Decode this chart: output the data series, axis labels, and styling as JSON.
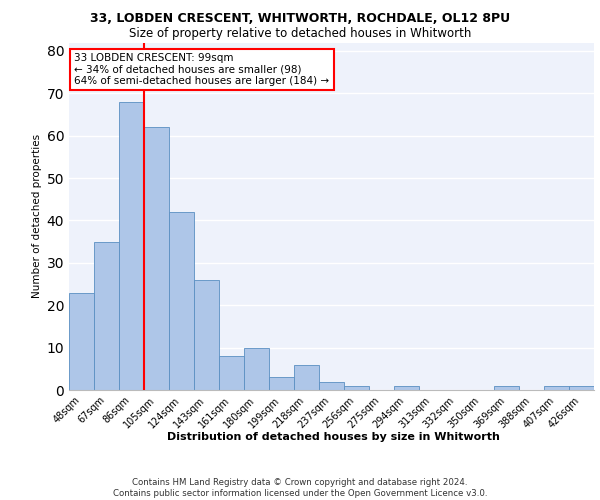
{
  "title1": "33, LOBDEN CRESCENT, WHITWORTH, ROCHDALE, OL12 8PU",
  "title2": "Size of property relative to detached houses in Whitworth",
  "xlabel": "Distribution of detached houses by size in Whitworth",
  "ylabel": "Number of detached properties",
  "footnote": "Contains HM Land Registry data © Crown copyright and database right 2024.\nContains public sector information licensed under the Open Government Licence v3.0.",
  "categories": [
    "48sqm",
    "67sqm",
    "86sqm",
    "105sqm",
    "124sqm",
    "143sqm",
    "161sqm",
    "180sqm",
    "199sqm",
    "218sqm",
    "237sqm",
    "256sqm",
    "275sqm",
    "294sqm",
    "313sqm",
    "332sqm",
    "350sqm",
    "369sqm",
    "388sqm",
    "407sqm",
    "426sqm"
  ],
  "values": [
    23,
    35,
    68,
    62,
    42,
    26,
    8,
    10,
    3,
    6,
    2,
    1,
    0,
    1,
    0,
    0,
    0,
    1,
    0,
    1,
    1
  ],
  "bar_color": "#aec6e8",
  "bar_edge_color": "#5a8fc2",
  "ylim": [
    0,
    82
  ],
  "yticks": [
    0,
    10,
    20,
    30,
    40,
    50,
    60,
    70,
    80
  ],
  "annotation_text": "33 LOBDEN CRESCENT: 99sqm\n← 34% of detached houses are smaller (98)\n64% of semi-detached houses are larger (184) →",
  "annotation_box_color": "white",
  "annotation_box_edge_color": "red",
  "vline_color": "red",
  "background_color": "#eef2fb",
  "grid_color": "white"
}
